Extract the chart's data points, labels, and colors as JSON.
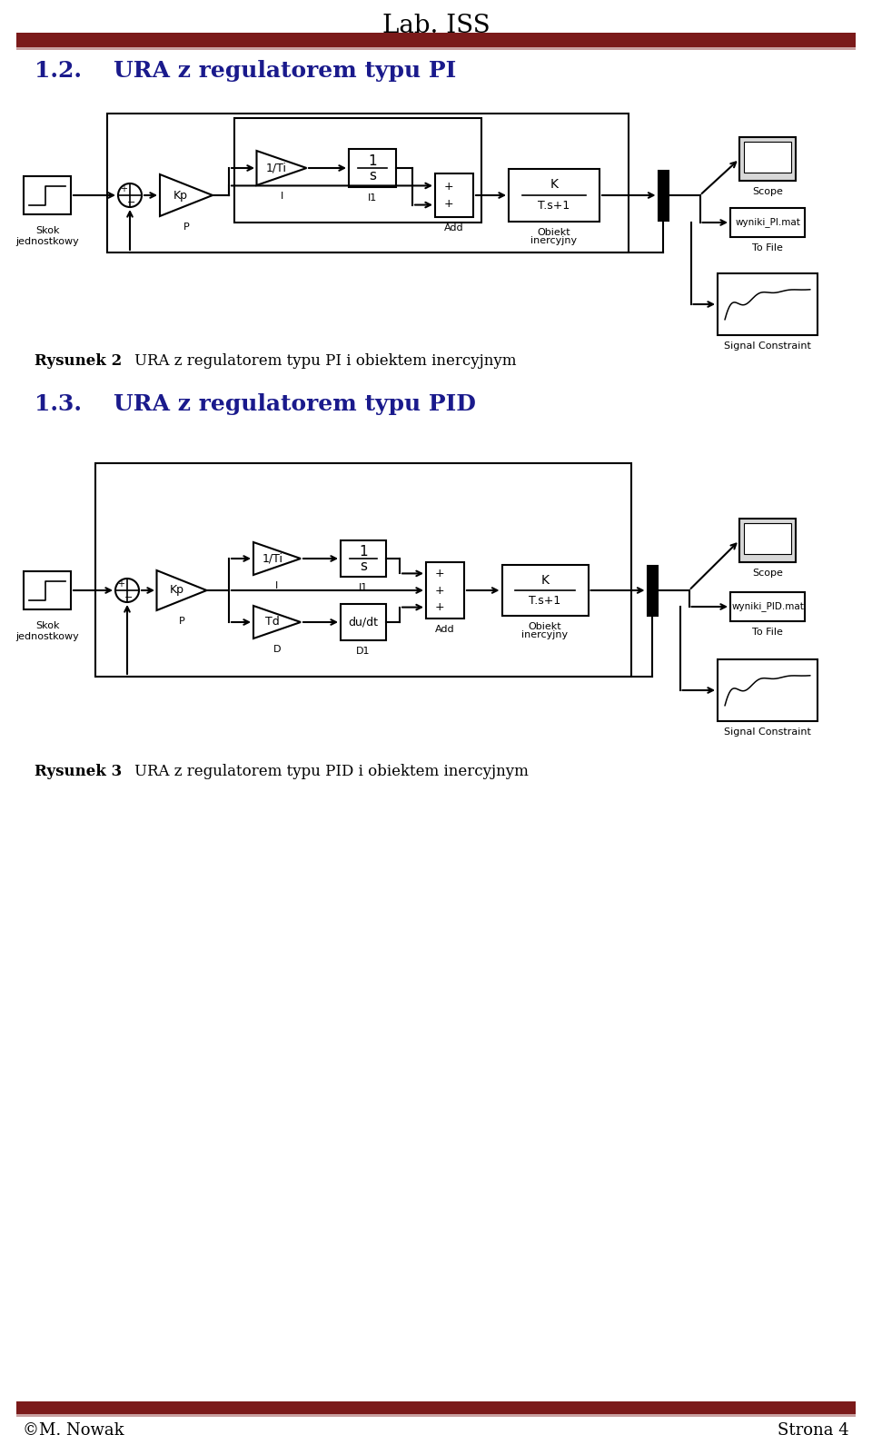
{
  "title": "Lab. ISS",
  "header_bar_color": "#7B1A1A",
  "header_bar_color2": "#C8A0A0",
  "section1_num": "1.2.",
  "section1_title": "URA z regulatorem typu PI",
  "section2_num": "1.3.",
  "section2_title": "URA z regulatorem typu PID",
  "caption1_num": "Rysunek 2",
  "caption1_text": "URA z regulatorem typu PI i obiektem inercyjnym",
  "caption2_num": "Rysunek 3",
  "caption2_text": "URA z regulatorem typu PID i obiektem inercyjnym",
  "footer_left": "©M. Nowak",
  "footer_right": "Strona 4",
  "section_color": "#1a1a8c",
  "bg_color": "#ffffff"
}
